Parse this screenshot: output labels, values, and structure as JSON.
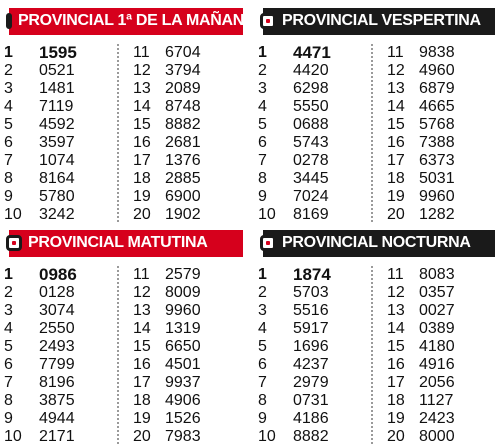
{
  "colors": {
    "accent": "#d6001c",
    "dark": "#1a1a1a",
    "divider": "#9a9a9a"
  },
  "panels": [
    {
      "title": "PROVINCIAL 1ª DE LA MAÑANA",
      "header_style": "red",
      "left": [
        [
          "1",
          "1595"
        ],
        [
          "2",
          "0521"
        ],
        [
          "3",
          "1481"
        ],
        [
          "4",
          "7119"
        ],
        [
          "5",
          "4592"
        ],
        [
          "6",
          "3597"
        ],
        [
          "7",
          "1074"
        ],
        [
          "8",
          "8164"
        ],
        [
          "9",
          "5780"
        ],
        [
          "10",
          "3242"
        ]
      ],
      "right": [
        [
          "11",
          "6704"
        ],
        [
          "12",
          "3794"
        ],
        [
          "13",
          "2089"
        ],
        [
          "14",
          "8748"
        ],
        [
          "15",
          "8882"
        ],
        [
          "16",
          "2681"
        ],
        [
          "17",
          "1376"
        ],
        [
          "18",
          "2885"
        ],
        [
          "19",
          "6900"
        ],
        [
          "20",
          "1902"
        ]
      ]
    },
    {
      "title": "PROVINCIAL VESPERTINA",
      "header_style": "dark",
      "left": [
        [
          "1",
          "4471"
        ],
        [
          "2",
          "4420"
        ],
        [
          "3",
          "6298"
        ],
        [
          "4",
          "5550"
        ],
        [
          "5",
          "0688"
        ],
        [
          "6",
          "5743"
        ],
        [
          "7",
          "0278"
        ],
        [
          "8",
          "3445"
        ],
        [
          "9",
          "7024"
        ],
        [
          "10",
          "8169"
        ]
      ],
      "right": [
        [
          "11",
          "9838"
        ],
        [
          "12",
          "4960"
        ],
        [
          "13",
          "6879"
        ],
        [
          "14",
          "4665"
        ],
        [
          "15",
          "5768"
        ],
        [
          "16",
          "7388"
        ],
        [
          "17",
          "6373"
        ],
        [
          "18",
          "5031"
        ],
        [
          "19",
          "9960"
        ],
        [
          "20",
          "1282"
        ]
      ]
    },
    {
      "title": "PROVINCIAL MATUTINA",
      "header_style": "red",
      "left": [
        [
          "1",
          "0986"
        ],
        [
          "2",
          "0128"
        ],
        [
          "3",
          "3074"
        ],
        [
          "4",
          "2550"
        ],
        [
          "5",
          "2493"
        ],
        [
          "6",
          "7799"
        ],
        [
          "7",
          "8196"
        ],
        [
          "8",
          "3875"
        ],
        [
          "9",
          "4944"
        ],
        [
          "10",
          "2171"
        ]
      ],
      "right": [
        [
          "11",
          "2579"
        ],
        [
          "12",
          "8009"
        ],
        [
          "13",
          "9960"
        ],
        [
          "14",
          "1319"
        ],
        [
          "15",
          "6650"
        ],
        [
          "16",
          "4501"
        ],
        [
          "17",
          "9937"
        ],
        [
          "18",
          "4906"
        ],
        [
          "19",
          "1526"
        ],
        [
          "20",
          "7983"
        ]
      ]
    },
    {
      "title": "PROVINCIAL NOCTURNA",
      "header_style": "dark",
      "left": [
        [
          "1",
          "1874"
        ],
        [
          "2",
          "5703"
        ],
        [
          "3",
          "5516"
        ],
        [
          "4",
          "5917"
        ],
        [
          "5",
          "1696"
        ],
        [
          "6",
          "4237"
        ],
        [
          "7",
          "2979"
        ],
        [
          "8",
          "0731"
        ],
        [
          "9",
          "4186"
        ],
        [
          "10",
          "8882"
        ]
      ],
      "right": [
        [
          "11",
          "8083"
        ],
        [
          "12",
          "0357"
        ],
        [
          "13",
          "0027"
        ],
        [
          "14",
          "0389"
        ],
        [
          "15",
          "4180"
        ],
        [
          "16",
          "4916"
        ],
        [
          "17",
          "2056"
        ],
        [
          "18",
          "1127"
        ],
        [
          "19",
          "2423"
        ],
        [
          "20",
          "8000"
        ]
      ]
    }
  ]
}
